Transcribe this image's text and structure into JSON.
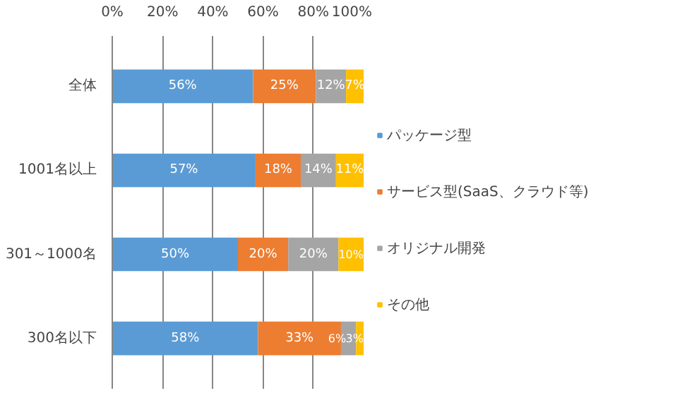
{
  "chart_data": {
    "type": "bar",
    "orientation": "horizontal",
    "stacked": true,
    "categories": [
      "全体",
      "1001名以上",
      "301～1000名",
      "300名以下"
    ],
    "series": [
      {
        "name": "パッケージ型",
        "color": "#5b9bd5",
        "values": [
          56,
          57,
          50,
          58
        ],
        "value_labels": [
          "56%",
          "57%",
          "50%",
          "58%"
        ]
      },
      {
        "name": "サービス型(SaaS、クラウド等)",
        "color": "#ed7d31",
        "values": [
          25,
          18,
          20,
          33
        ],
        "value_labels": [
          "25%",
          "18%",
          "20%",
          "33%"
        ]
      },
      {
        "name": "オリジナル開発",
        "color": "#a5a5a5",
        "values": [
          12,
          14,
          20,
          6
        ],
        "value_labels": [
          "12%",
          "14%",
          "20%",
          "6%"
        ]
      },
      {
        "name": "その他",
        "color": "#ffc000",
        "values": [
          7,
          11,
          10,
          3
        ],
        "value_labels": [
          "7%",
          "11%",
          "10%",
          "3%"
        ]
      }
    ],
    "xlim": [
      0,
      100
    ],
    "xticks": [
      {
        "value": 0,
        "label": "0%"
      },
      {
        "value": 20,
        "label": "20%"
      },
      {
        "value": 40,
        "label": "40%"
      },
      {
        "value": 60,
        "label": "60%"
      },
      {
        "value": 80,
        "label": "80%"
      },
      {
        "value": 100,
        "label": "100%"
      }
    ],
    "grid": "x",
    "legend": "right"
  }
}
